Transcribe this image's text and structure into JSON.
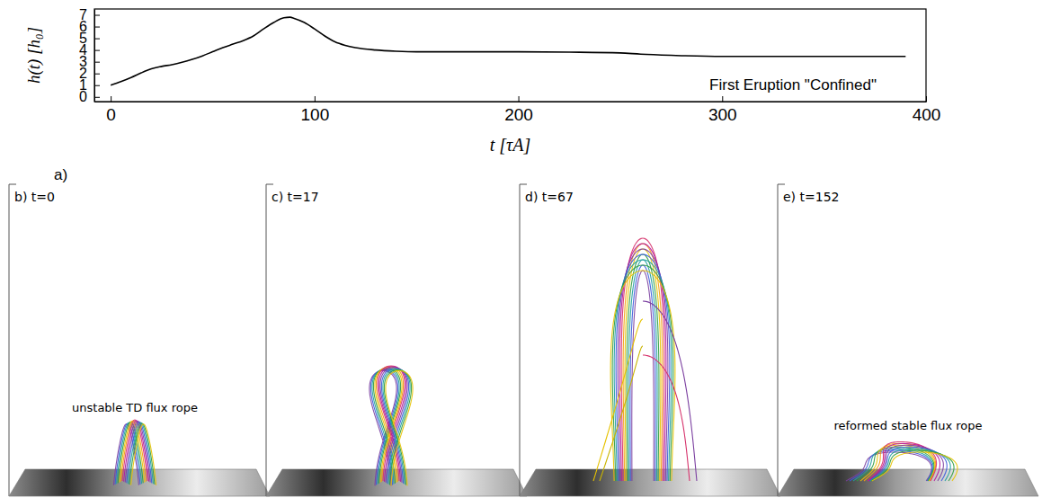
{
  "chart_data": {
    "type": "line",
    "x_label": "t  [τA]",
    "y_label": "h(t)  [h₀]",
    "annotation": "First Eruption \"Confined\"",
    "panel_letter": "a)",
    "color": "#000000",
    "x": [
      0,
      5,
      10,
      15,
      17,
      20,
      25,
      30,
      35,
      40,
      45,
      50,
      55,
      60,
      65,
      70,
      75,
      80,
      85,
      88,
      90,
      95,
      100,
      105,
      110,
      115,
      120,
      130,
      140,
      150,
      175,
      200,
      225,
      250,
      260,
      275,
      300,
      325,
      350,
      375,
      390
    ],
    "values": [
      1.0,
      1.3,
      1.65,
      2.05,
      2.2,
      2.4,
      2.6,
      2.75,
      2.95,
      3.2,
      3.5,
      3.85,
      4.2,
      4.5,
      4.8,
      5.2,
      5.8,
      6.35,
      6.75,
      6.8,
      6.7,
      6.35,
      5.8,
      5.2,
      4.7,
      4.4,
      4.2,
      4.0,
      3.9,
      3.85,
      3.85,
      3.85,
      3.82,
      3.75,
      3.65,
      3.55,
      3.45,
      3.45,
      3.45,
      3.45,
      3.45
    ],
    "xlim": [
      -8,
      400
    ],
    "ylim": [
      -0.4,
      7.5
    ],
    "xticks": [
      0,
      100,
      200,
      300,
      400
    ],
    "yticks": [
      0,
      1,
      2,
      3,
      4,
      5,
      6,
      7
    ]
  },
  "panels": [
    {
      "label": "b) t=0",
      "caption": "unstable TD flux rope"
    },
    {
      "label": "c) t=17"
    },
    {
      "label": "d) t=67"
    },
    {
      "label": "e) t=152",
      "caption": "reformed stable flux rope"
    }
  ]
}
